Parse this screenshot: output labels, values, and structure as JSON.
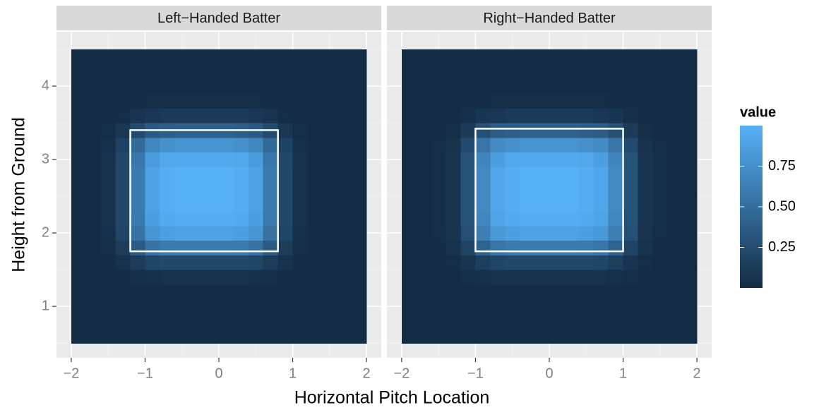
{
  "chart_data": {
    "type": "heatmap",
    "x_label": "Horizontal Pitch Location",
    "y_label": "Height from Ground",
    "legend_title": "value",
    "xlim": [
      -2.2,
      2.2
    ],
    "ylim": [
      0.3,
      4.74
    ],
    "xticks": [
      {
        "value": -2,
        "label": "−2"
      },
      {
        "value": -1,
        "label": "−1"
      },
      0,
      1,
      2
    ],
    "yticks": [
      1,
      2,
      3,
      4
    ],
    "xminor": [
      -1.5,
      -0.5,
      0.5,
      1.5
    ],
    "yminor": [
      0.5,
      1.5,
      2.5,
      3.5,
      4.5
    ],
    "grid": true,
    "clim": [
      0,
      1
    ],
    "cticks": [
      0.25,
      {
        "value": 0.5,
        "label": "0.50"
      },
      0.75
    ],
    "low_color": "#132B43",
    "high_color": "#56B1F7",
    "zone_color": "#ffffff",
    "x_edges": [
      -2,
      -1.8,
      -1.6,
      -1.4,
      -1.2,
      -1,
      -0.8,
      -0.6,
      -0.4,
      -0.2,
      0,
      0.2,
      0.4,
      0.6,
      0.8,
      1,
      1.2,
      1.4,
      1.6,
      1.8,
      2
    ],
    "y_edges": [
      0.5,
      0.7,
      0.9,
      1.1,
      1.3,
      1.5,
      1.7,
      1.9,
      2.1,
      2.3,
      2.5,
      2.7,
      2.9,
      3.1,
      3.3,
      3.5,
      3.7,
      3.9,
      4.1,
      4.3,
      4.5
    ],
    "panels": [
      {
        "title": "Left−Handed Batter",
        "zone": {
          "x": [
            -1.2,
            0.8
          ],
          "y": [
            1.75,
            3.4
          ]
        },
        "values": [
          [
            0,
            0,
            0,
            0,
            0,
            0,
            0,
            0,
            0,
            0,
            0,
            0,
            0,
            0,
            0,
            0,
            0,
            0,
            0,
            0
          ],
          [
            0,
            0,
            0,
            0,
            0,
            0,
            0,
            0,
            0,
            0,
            0,
            0,
            0,
            0,
            0,
            0,
            0,
            0,
            0,
            0
          ],
          [
            0,
            0,
            0,
            0,
            0,
            0,
            0,
            0,
            0,
            0,
            0,
            0,
            0,
            0,
            0,
            0,
            0,
            0,
            0,
            0
          ],
          [
            0,
            0,
            0,
            0,
            0.01,
            0.01,
            0.01,
            0.01,
            0.01,
            0.01,
            0.01,
            0.01,
            0.01,
            0.01,
            0,
            0,
            0,
            0,
            0,
            0
          ],
          [
            0,
            0,
            0,
            0.01,
            0.03,
            0.04,
            0.05,
            0.05,
            0.05,
            0.05,
            0.05,
            0.05,
            0.04,
            0.03,
            0.01,
            0,
            0,
            0,
            0,
            0
          ],
          [
            0,
            0,
            0.01,
            0.05,
            0.13,
            0.2,
            0.22,
            0.22,
            0.22,
            0.22,
            0.22,
            0.22,
            0.2,
            0.13,
            0.05,
            0.01,
            0,
            0,
            0,
            0
          ],
          [
            0,
            0,
            0.03,
            0.13,
            0.36,
            0.53,
            0.59,
            0.6,
            0.6,
            0.6,
            0.6,
            0.59,
            0.53,
            0.36,
            0.13,
            0.03,
            0.01,
            0,
            0,
            0
          ],
          [
            0,
            0,
            0.04,
            0.2,
            0.53,
            0.79,
            0.87,
            0.89,
            0.89,
            0.89,
            0.89,
            0.87,
            0.79,
            0.53,
            0.2,
            0.04,
            0.01,
            0,
            0,
            0
          ],
          [
            0,
            0,
            0.05,
            0.22,
            0.59,
            0.87,
            0.96,
            0.98,
            0.98,
            0.98,
            0.98,
            0.96,
            0.87,
            0.59,
            0.22,
            0.05,
            0.01,
            0,
            0,
            0
          ],
          [
            0,
            0,
            0.05,
            0.22,
            0.6,
            0.89,
            0.98,
            1,
            1,
            1,
            1,
            0.98,
            0.89,
            0.6,
            0.22,
            0.05,
            0.01,
            0,
            0,
            0
          ],
          [
            0,
            0,
            0.05,
            0.22,
            0.6,
            0.89,
            0.98,
            1,
            1,
            1,
            1,
            0.98,
            0.89,
            0.6,
            0.22,
            0.05,
            0.01,
            0,
            0,
            0
          ],
          [
            0,
            0,
            0.05,
            0.22,
            0.6,
            0.89,
            0.98,
            1,
            1,
            1,
            1,
            0.98,
            0.89,
            0.6,
            0.22,
            0.05,
            0.01,
            0,
            0,
            0
          ],
          [
            0,
            0,
            0.05,
            0.21,
            0.57,
            0.85,
            0.93,
            0.95,
            0.95,
            0.95,
            0.95,
            0.93,
            0.85,
            0.57,
            0.21,
            0.05,
            0.01,
            0,
            0,
            0
          ],
          [
            0,
            0,
            0.04,
            0.17,
            0.47,
            0.69,
            0.76,
            0.78,
            0.78,
            0.78,
            0.78,
            0.76,
            0.69,
            0.47,
            0.17,
            0.04,
            0.01,
            0,
            0,
            0
          ],
          [
            0,
            0,
            0.02,
            0.09,
            0.24,
            0.36,
            0.39,
            0.4,
            0.4,
            0.4,
            0.4,
            0.39,
            0.36,
            0.24,
            0.09,
            0.02,
            0,
            0,
            0,
            0
          ],
          [
            0,
            0,
            0.01,
            0.02,
            0.07,
            0.1,
            0.11,
            0.11,
            0.11,
            0.11,
            0.11,
            0.11,
            0.1,
            0.07,
            0.02,
            0.01,
            0,
            0,
            0,
            0
          ],
          [
            0,
            0,
            0,
            0,
            0.01,
            0.02,
            0.02,
            0.02,
            0.02,
            0.02,
            0.02,
            0.02,
            0.02,
            0.01,
            0,
            0,
            0,
            0,
            0,
            0
          ],
          [
            0,
            0,
            0,
            0,
            0,
            0,
            0,
            0,
            0,
            0,
            0,
            0,
            0,
            0,
            0,
            0,
            0,
            0,
            0,
            0
          ],
          [
            0,
            0,
            0,
            0,
            0,
            0,
            0,
            0,
            0,
            0,
            0,
            0,
            0,
            0,
            0,
            0,
            0,
            0,
            0,
            0
          ],
          [
            0,
            0,
            0,
            0,
            0,
            0,
            0,
            0,
            0,
            0,
            0,
            0,
            0,
            0,
            0,
            0,
            0,
            0,
            0,
            0
          ]
        ]
      },
      {
        "title": "Right−Handed Batter",
        "zone": {
          "x": [
            -1,
            1
          ],
          "y": [
            1.75,
            3.42
          ]
        },
        "values": [
          [
            0,
            0,
            0,
            0,
            0,
            0,
            0,
            0,
            0,
            0,
            0,
            0,
            0,
            0,
            0,
            0,
            0,
            0,
            0,
            0
          ],
          [
            0,
            0,
            0,
            0,
            0,
            0,
            0,
            0,
            0,
            0,
            0,
            0,
            0,
            0,
            0,
            0,
            0,
            0,
            0,
            0
          ],
          [
            0,
            0,
            0,
            0,
            0,
            0,
            0,
            0,
            0,
            0,
            0,
            0,
            0,
            0,
            0,
            0,
            0,
            0,
            0,
            0
          ],
          [
            0,
            0,
            0,
            0,
            0,
            0.01,
            0.01,
            0.01,
            0.01,
            0.01,
            0.01,
            0.01,
            0.01,
            0.01,
            0.01,
            0,
            0,
            0,
            0,
            0
          ],
          [
            0,
            0,
            0,
            0,
            0.02,
            0.04,
            0.05,
            0.05,
            0.05,
            0.05,
            0.05,
            0.05,
            0.05,
            0.05,
            0.04,
            0.02,
            0,
            0,
            0,
            0
          ],
          [
            0,
            0,
            0,
            0.02,
            0.07,
            0.15,
            0.2,
            0.22,
            0.22,
            0.22,
            0.22,
            0.22,
            0.22,
            0.2,
            0.15,
            0.07,
            0.02,
            0,
            0,
            0
          ],
          [
            0,
            0,
            0.01,
            0.05,
            0.18,
            0.42,
            0.55,
            0.59,
            0.6,
            0.6,
            0.6,
            0.6,
            0.59,
            0.55,
            0.42,
            0.18,
            0.05,
            0.01,
            0,
            0
          ],
          [
            0,
            0,
            0.02,
            0.07,
            0.27,
            0.62,
            0.82,
            0.87,
            0.89,
            0.89,
            0.89,
            0.89,
            0.87,
            0.82,
            0.62,
            0.27,
            0.07,
            0.02,
            0,
            0
          ],
          [
            0,
            0,
            0.02,
            0.08,
            0.29,
            0.69,
            0.9,
            0.96,
            0.98,
            0.98,
            0.98,
            0.98,
            0.96,
            0.9,
            0.69,
            0.29,
            0.08,
            0.02,
            0,
            0
          ],
          [
            0,
            0,
            0.02,
            0.08,
            0.3,
            0.7,
            0.92,
            0.98,
            1,
            1,
            1,
            1,
            0.98,
            0.92,
            0.7,
            0.3,
            0.08,
            0.02,
            0,
            0
          ],
          [
            0,
            0,
            0.02,
            0.08,
            0.3,
            0.7,
            0.92,
            0.98,
            1,
            1,
            1,
            1,
            0.98,
            0.92,
            0.7,
            0.3,
            0.08,
            0.02,
            0,
            0
          ],
          [
            0,
            0,
            0.02,
            0.08,
            0.3,
            0.7,
            0.92,
            0.98,
            1,
            1,
            1,
            1,
            0.98,
            0.92,
            0.7,
            0.3,
            0.08,
            0.02,
            0,
            0
          ],
          [
            0,
            0,
            0.02,
            0.08,
            0.29,
            0.67,
            0.87,
            0.93,
            0.95,
            0.95,
            0.95,
            0.95,
            0.93,
            0.87,
            0.67,
            0.29,
            0.08,
            0.02,
            0,
            0
          ],
          [
            0,
            0,
            0.02,
            0.06,
            0.23,
            0.55,
            0.72,
            0.76,
            0.78,
            0.78,
            0.78,
            0.78,
            0.76,
            0.72,
            0.55,
            0.23,
            0.06,
            0.02,
            0,
            0
          ],
          [
            0,
            0,
            0.01,
            0.03,
            0.12,
            0.28,
            0.37,
            0.39,
            0.4,
            0.4,
            0.4,
            0.4,
            0.39,
            0.37,
            0.28,
            0.12,
            0.03,
            0.01,
            0,
            0
          ],
          [
            0,
            0,
            0,
            0.01,
            0.03,
            0.08,
            0.1,
            0.11,
            0.11,
            0.11,
            0.11,
            0.11,
            0.11,
            0.1,
            0.08,
            0.03,
            0.01,
            0,
            0,
            0
          ],
          [
            0,
            0,
            0,
            0,
            0.01,
            0.01,
            0.02,
            0.02,
            0.02,
            0.02,
            0.02,
            0.02,
            0.02,
            0.02,
            0.01,
            0.01,
            0,
            0,
            0,
            0
          ],
          [
            0,
            0,
            0,
            0,
            0,
            0,
            0,
            0,
            0,
            0,
            0,
            0,
            0,
            0,
            0,
            0,
            0,
            0,
            0,
            0
          ],
          [
            0,
            0,
            0,
            0,
            0,
            0,
            0,
            0,
            0,
            0,
            0,
            0,
            0,
            0,
            0,
            0,
            0,
            0,
            0,
            0
          ],
          [
            0,
            0,
            0,
            0,
            0,
            0,
            0,
            0,
            0,
            0,
            0,
            0,
            0,
            0,
            0,
            0,
            0,
            0,
            0,
            0
          ]
        ]
      }
    ]
  }
}
